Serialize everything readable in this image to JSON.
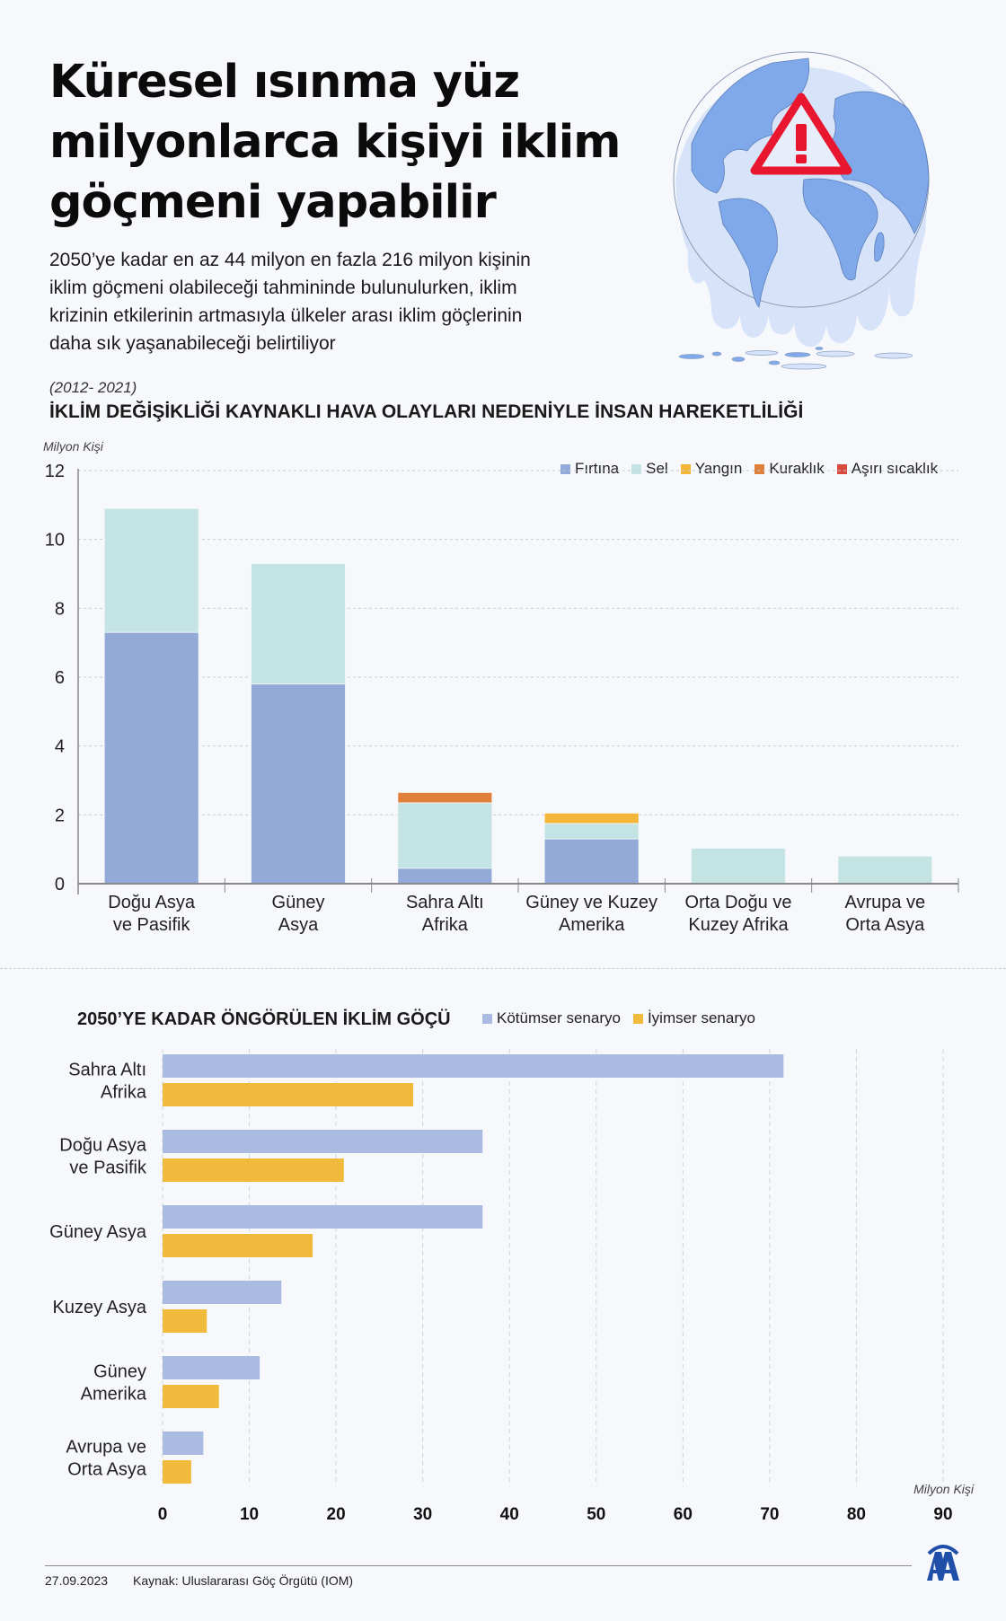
{
  "header": {
    "title_lines": [
      "Küresel ısınma yüz",
      "milyonlarca kişiyi iklim",
      "göçmeni yapabilir"
    ],
    "lead_lines": [
      "2050’ye kadar en az 44 milyon en fazla 216 milyon kişinin",
      "iklim göçmeni olabileceği tahmininde bulunulurken, iklim",
      "krizinin etkilerinin artmasıyla ülkeler arası iklim göçlerinin",
      "daha sık yaşanabileceği belirtiliyor"
    ],
    "illustration_icons": [
      "melting-globe-icon",
      "warning-triangle-icon"
    ]
  },
  "chart_data": [
    {
      "type": "bar",
      "stacked": true,
      "subtitle": "(2012- 2021)",
      "title": "İKLİM DEĞİŞİKLİĞİ KAYNAKLI HAVA OLAYLARI NEDENİYLE İNSAN HAREKETLİLİĞİ",
      "ylabel": "Milyon Kişi",
      "ylim": [
        0,
        12
      ],
      "yticks": [
        0,
        2,
        4,
        6,
        8,
        10,
        12
      ],
      "grid": true,
      "legend": "top-right",
      "categories": [
        [
          "Doğu Asya",
          "ve Pasifik"
        ],
        [
          "Güney",
          "Asya"
        ],
        [
          "Sahra Altı",
          "Afrika"
        ],
        [
          "Güney ve Kuzey",
          "Amerika"
        ],
        [
          "Orta Doğu ve",
          "Kuzey Afrika"
        ],
        [
          "Avrupa ve",
          "Orta Asya"
        ]
      ],
      "series": [
        {
          "name": "Fırtına",
          "color": "#93a9d8",
          "values": [
            7.3,
            5.8,
            0.45,
            1.3,
            0,
            0
          ]
        },
        {
          "name": "Sel",
          "color": "#c3e4e3",
          "values": [
            3.6,
            3.5,
            1.9,
            0.45,
            1.03,
            0.8
          ]
        },
        {
          "name": "Yangın",
          "color": "#f5b638",
          "values": [
            0,
            0,
            0,
            0.3,
            0,
            0
          ]
        },
        {
          "name": "Kuraklık",
          "color": "#e07f3a",
          "values": [
            0,
            0,
            0.3,
            0,
            0,
            0
          ]
        },
        {
          "name": "Aşırı sıcaklık",
          "color": "#d94a3e",
          "values": [
            0,
            0,
            0,
            0,
            0,
            0
          ]
        }
      ]
    },
    {
      "type": "bar",
      "orientation": "horizontal",
      "title": "2050’YE KADAR ÖNGÖRÜLEN İKLİM GÖÇÜ",
      "xlabel": "Milyon Kişi",
      "xlim": [
        0,
        90
      ],
      "xticks": [
        0,
        10,
        20,
        30,
        40,
        50,
        60,
        70,
        80,
        90
      ],
      "grid": true,
      "legend": "top",
      "categories": [
        [
          "Sahra Altı",
          "Afrika"
        ],
        [
          "Doğu Asya",
          "ve Pasifik"
        ],
        [
          "Güney Asya"
        ],
        [
          "Kuzey Asya"
        ],
        [
          "Güney",
          "Amerika"
        ],
        [
          "Avrupa ve",
          "Orta Asya"
        ]
      ],
      "series": [
        {
          "name": "Kötümser senaryo",
          "color": "#a9bbe0",
          "values": [
            71.6,
            36.9,
            36.9,
            13.7,
            11.2,
            4.7
          ]
        },
        {
          "name": "İyimser senaryo",
          "color": "#f0bb3c",
          "values": [
            28.9,
            20.9,
            17.3,
            5.1,
            6.5,
            3.3
          ]
        }
      ]
    }
  ],
  "footer": {
    "date": "27.09.2023",
    "source": "Kaynak: Uluslararası Göç Örgütü (IOM)",
    "logo": "AA"
  }
}
